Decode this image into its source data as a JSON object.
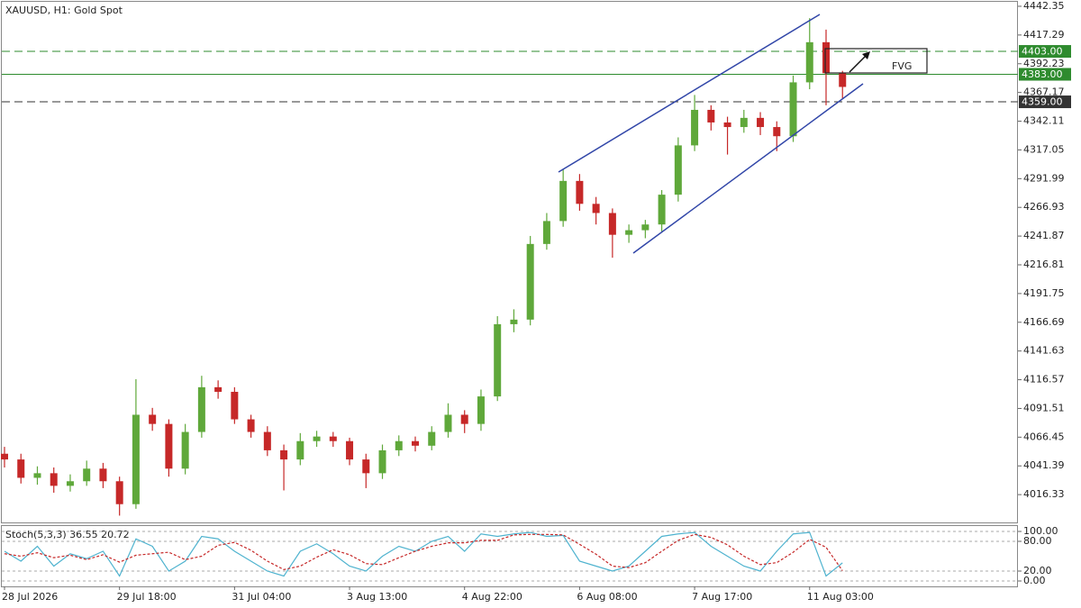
{
  "chart_data": {
    "type": "candlestick",
    "title": "XAUUSD, H1:  Gold Spot",
    "categories": [
      "28 Jul 2026",
      null,
      null,
      null,
      null,
      null,
      null,
      "29 Jul 18:00",
      null,
      null,
      null,
      null,
      null,
      null,
      "31 Jul 04:00",
      null,
      null,
      null,
      null,
      null,
      null,
      "3 Aug 13:00",
      null,
      null,
      null,
      null,
      null,
      null,
      "4 Aug 22:00",
      null,
      null,
      null,
      null,
      null,
      null,
      "6 Aug 08:00",
      null,
      null,
      null,
      null,
      null,
      null,
      "7 Aug 17:00",
      null,
      null,
      null,
      null,
      null,
      null,
      "11 Aug 03:00",
      null,
      null
    ],
    "open": [
      4052,
      4047,
      4031,
      4035,
      4024,
      4028,
      4039,
      4028,
      4008,
      4086,
      4078,
      4039,
      4071,
      4110,
      4106,
      4082,
      4071,
      4055,
      4047,
      4063,
      4067,
      4063,
      4047,
      4035,
      4055,
      4063,
      4059,
      4071,
      4086,
      4078,
      4102,
      4165,
      4169,
      4235,
      4255,
      4290,
      4270,
      4262,
      4243,
      4247,
      4252,
      4278,
      4321,
      4352,
      4341,
      4337,
      4345,
      4337,
      4329,
      4376,
      4411,
      4384
    ],
    "high": [
      4058,
      4052,
      4041,
      4040,
      4034,
      4046,
      4044,
      4032,
      4117,
      4092,
      4082,
      4078,
      4120,
      4116,
      4110,
      4086,
      4076,
      4060,
      4070,
      4072,
      4071,
      4066,
      4052,
      4060,
      4068,
      4067,
      4076,
      4096,
      4090,
      4108,
      4172,
      4178,
      4242,
      4262,
      4300,
      4296,
      4276,
      4266,
      4252,
      4256,
      4282,
      4328,
      4365,
      4356,
      4346,
      4352,
      4350,
      4342,
      4382,
      4432,
      4422,
      4386
    ],
    "low": [
      4040,
      4026,
      4025,
      4018,
      4019,
      4024,
      4022,
      3998,
      4004,
      4072,
      4032,
      4034,
      4066,
      4100,
      4078,
      4066,
      4050,
      4020,
      4042,
      4058,
      4058,
      4042,
      4022,
      4030,
      4050,
      4054,
      4055,
      4066,
      4070,
      4072,
      4098,
      4158,
      4164,
      4230,
      4250,
      4264,
      4252,
      4223,
      4236,
      4240,
      4246,
      4272,
      4316,
      4334,
      4313,
      4332,
      4330,
      4316,
      4324,
      4370,
      4356,
      4362
    ],
    "close": [
      4047,
      4031,
      4035,
      4024,
      4028,
      4039,
      4028,
      4008,
      4086,
      4078,
      4039,
      4071,
      4110,
      4106,
      4082,
      4071,
      4055,
      4047,
      4063,
      4067,
      4063,
      4047,
      4035,
      4055,
      4063,
      4059,
      4071,
      4086,
      4078,
      4102,
      4165,
      4169,
      4235,
      4255,
      4290,
      4270,
      4262,
      4243,
      4247,
      4252,
      4278,
      4321,
      4352,
      4341,
      4337,
      4345,
      4337,
      4329,
      4376,
      4411,
      4384,
      4372
    ],
    "up_color": "#5fa83a",
    "down_color": "#c62828",
    "ylim": [
      3992.07,
      4446.26
    ],
    "yticks": [
      4442.35,
      4417.29,
      4392.23,
      4367.17,
      4342.11,
      4317.05,
      4291.99,
      4266.93,
      4241.87,
      4216.81,
      4191.75,
      4166.69,
      4141.63,
      4116.57,
      4091.51,
      4066.45,
      4041.39,
      4016.33
    ],
    "levels": [
      {
        "value": 4403,
        "label": "4403.00",
        "color": "#2e8b2e",
        "style": "dashed"
      },
      {
        "value": 4383,
        "label": "4383.00",
        "color": "#2e8b2e",
        "style": "solid"
      },
      {
        "value": 4359,
        "label": "4359.00",
        "color": "#333333",
        "style": "dashed"
      }
    ],
    "annotation": "FVG",
    "indicator": {
      "type": "line",
      "name": "Stoch(5,3,3)",
      "ylim": [
        0,
        100
      ],
      "yticks": [
        {
          "value": 100,
          "label": "100.00"
        },
        {
          "value": 80,
          "label": "80.00"
        },
        {
          "value": 20,
          "label": "20.00"
        },
        {
          "value": 0,
          "label": "0.00"
        }
      ],
      "series": [
        {
          "color": "#4fb3cf",
          "style": "solid",
          "values": [
            60,
            40,
            70,
            30,
            55,
            45,
            60,
            10,
            85,
            70,
            20,
            40,
            90,
            85,
            60,
            40,
            20,
            10,
            60,
            75,
            55,
            30,
            20,
            50,
            70,
            60,
            80,
            90,
            60,
            95,
            90,
            95,
            98,
            90,
            92,
            40,
            30,
            20,
            30,
            60,
            90,
            95,
            98,
            70,
            50,
            30,
            20,
            60,
            95,
            98,
            10,
            36.55
          ]
        },
        {
          "color": "#c62828",
          "style": "dashed",
          "values": [
            55,
            50,
            57,
            47,
            52,
            43,
            53,
            38,
            52,
            55,
            58,
            43,
            50,
            72,
            78,
            62,
            40,
            23,
            30,
            48,
            63,
            53,
            35,
            33,
            47,
            60,
            70,
            77,
            77,
            82,
            82,
            93,
            94,
            94,
            93,
            74,
            54,
            30,
            27,
            37,
            60,
            82,
            94,
            88,
            73,
            50,
            33,
            37,
            58,
            84,
            68,
            20.72
          ]
        }
      ]
    }
  }
}
